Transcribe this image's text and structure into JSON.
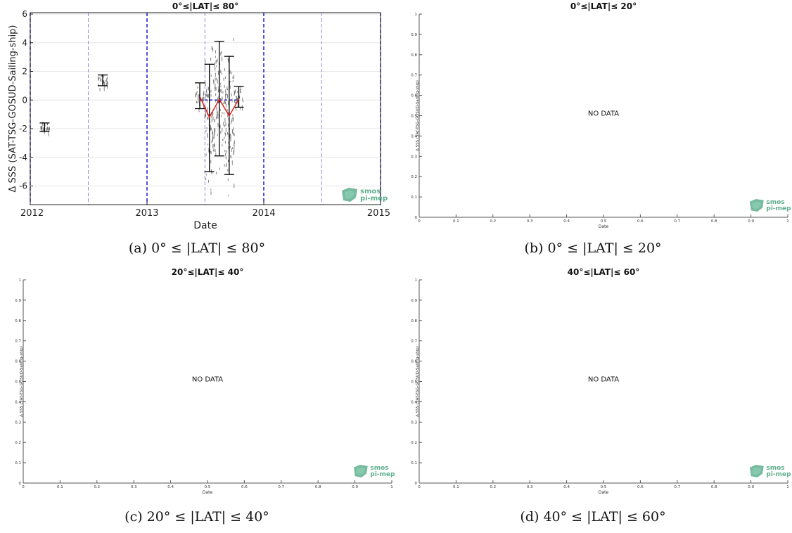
{
  "figure": {
    "captions": [
      "(a) 0° ≤ |LAT| ≤ 80°",
      "(b) 0° ≤ |LAT| ≤ 20°",
      "(c) 20° ≤ |LAT| ≤ 40°",
      "(d) 40° ≤ |LAT| ≤ 60°"
    ],
    "logo_text": [
      "smos",
      "pi-mep"
    ],
    "logo_color": "#5fae8f"
  },
  "chart_data": [
    {
      "type": "scatter",
      "title": "0°≤|LAT|≤ 80°",
      "xlabel": "Date",
      "ylabel": "Δ SSS (SAT-TSG-GOSUD-Sailing-ship)",
      "xlim": [
        "2012-01-01",
        "2015-01-01"
      ],
      "ylim": [
        -7.3,
        6.1
      ],
      "x_ticks": [
        "2012",
        "2013",
        "2014",
        "2015"
      ],
      "y_ticks": [
        -6,
        -4,
        -2,
        0,
        2,
        4,
        6
      ],
      "grid": true,
      "year_lines": [
        "2012-01-01",
        "2013-01-01",
        "2014-01-01",
        "2015-01-01"
      ],
      "half_year_lines": [
        "2012-07-01",
        "2013-07-01",
        "2014-07-01"
      ],
      "zero_line": {
        "from": "2013-06-15",
        "to": "2013-10-15",
        "y": 0
      },
      "monthly_stats": [
        {
          "date": "2012-02-15",
          "mean": -1.9,
          "low": -2.2,
          "high": -1.6
        },
        {
          "date": "2012-08-15",
          "mean": 1.4,
          "low": 1.0,
          "high": 1.75
        },
        {
          "date": "2013-06-15",
          "mean": 0.25,
          "low": -0.6,
          "high": 1.2
        },
        {
          "date": "2013-07-15",
          "mean": -1.2,
          "low": -5.0,
          "high": 2.5
        },
        {
          "date": "2013-08-15",
          "mean": 0.1,
          "low": -3.9,
          "high": 4.1
        },
        {
          "date": "2013-09-15",
          "mean": -1.1,
          "low": -5.2,
          "high": 3.05
        },
        {
          "date": "2013-10-15",
          "mean": 0.1,
          "low": -0.5,
          "high": 0.95
        }
      ],
      "median_line": [
        {
          "date": "2013-06-15",
          "value": 0.25
        },
        {
          "date": "2013-07-15",
          "value": -1.2
        },
        {
          "date": "2013-08-15",
          "value": 0.05
        },
        {
          "date": "2013-09-15",
          "value": -1.1
        },
        {
          "date": "2013-10-15",
          "value": 0.05
        }
      ],
      "colors": {
        "errorbars": "#000000",
        "median": "#e0201b",
        "year_lines": "#1a1acc",
        "half_year_lines": "#8c8ce6",
        "zero_line": "#1a1acc",
        "points": "#555555"
      }
    },
    {
      "type": "scatter",
      "title": "0°≤|LAT|≤ 20°",
      "xlabel": "Date",
      "ylabel": "Δ SSS (SAT-TSG-GOSUD-Sailing-ship)",
      "xlim": [
        0,
        1
      ],
      "ylim": [
        0,
        1
      ],
      "x_ticks": [
        "0",
        "0.1",
        "0.2",
        "0.3",
        "0.4",
        "0.5",
        "0.6",
        "0.7",
        "0.8",
        "0.9",
        "1"
      ],
      "y_ticks": [
        "0",
        "0.1",
        "0.2",
        "0.3",
        "0.4",
        "0.5",
        "0.6",
        "0.7",
        "0.8",
        "0.9",
        "1"
      ],
      "annotation": "NO DATA"
    },
    {
      "type": "scatter",
      "title": "20°≤|LAT|≤ 40°",
      "xlabel": "Date",
      "ylabel": "Δ SSS (SAT-TSG-GOSUD-Sailing-ship)",
      "xlim": [
        0,
        1
      ],
      "ylim": [
        0,
        1
      ],
      "x_ticks": [
        "0",
        "0.1",
        "0.2",
        "0.3",
        "0.4",
        "0.5",
        "0.6",
        "0.7",
        "0.8",
        "0.9",
        "1"
      ],
      "y_ticks": [
        "0",
        "0.1",
        "0.2",
        "0.3",
        "0.4",
        "0.5",
        "0.6",
        "0.7",
        "0.8",
        "0.9",
        "1"
      ],
      "annotation": "NO DATA"
    },
    {
      "type": "scatter",
      "title": "40°≤|LAT|≤ 60°",
      "xlabel": "Date",
      "ylabel": "Δ SSS (SAT-TSG-GOSUD-Sailing-ship)",
      "xlim": [
        0,
        1
      ],
      "ylim": [
        0,
        1
      ],
      "x_ticks": [
        "0",
        "0.1",
        "0.2",
        "0.3",
        "0.4",
        "0.5",
        "0.6",
        "0.7",
        "0.8",
        "0.9",
        "1"
      ],
      "y_ticks": [
        "0",
        "0.1",
        "0.2",
        "0.3",
        "0.4",
        "0.5",
        "0.6",
        "0.7",
        "0.8",
        "0.9",
        "1"
      ],
      "annotation": "NO DATA"
    }
  ]
}
